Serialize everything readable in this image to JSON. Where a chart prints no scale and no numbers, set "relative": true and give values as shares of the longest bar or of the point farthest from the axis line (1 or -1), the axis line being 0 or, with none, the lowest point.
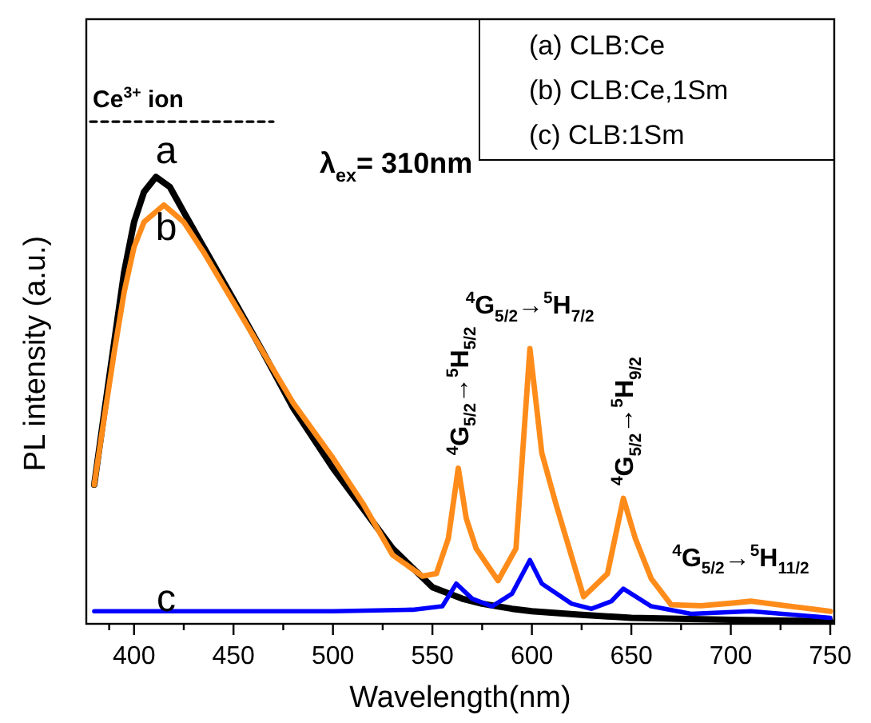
{
  "chart_data": {
    "type": "line",
    "relative": true,
    "xlabel": "Wavelength(nm)",
    "ylabel": "PL intensity (a.u.)",
    "xlim": [
      376,
      752
    ],
    "xticks": [
      {
        "value": 387.5,
        "label": null
      },
      400,
      {
        "value": 425,
        "label": null
      },
      450,
      {
        "value": 475,
        "label": null
      },
      500,
      {
        "value": 525,
        "label": null
      },
      550,
      {
        "value": 575,
        "label": null
      },
      600,
      {
        "value": 625,
        "label": null
      },
      650,
      {
        "value": 675,
        "label": null
      },
      700,
      {
        "value": 725,
        "label": null
      },
      750
    ],
    "grid": false,
    "marker": "none",
    "series": [
      {
        "color": "#000000",
        "x": [
          380,
          385,
          390,
          395,
          400,
          405,
          411,
          418,
          425,
          435,
          450,
          465,
          480,
          500,
          515,
          530,
          550,
          565,
          575,
          590,
          600,
          625,
          650,
          700,
          750
        ],
        "values": [
          0.277,
          0.42,
          0.56,
          0.7,
          0.8,
          0.86,
          0.89,
          0.87,
          0.82,
          0.75,
          0.646,
          0.54,
          0.43,
          0.31,
          0.23,
          0.15,
          0.073,
          0.05,
          0.04,
          0.03,
          0.025,
          0.018,
          0.012,
          0.008,
          0.005
        ]
      },
      {
        "color": "#ff8c1a",
        "x": [
          380,
          385,
          390,
          395,
          400,
          405,
          415,
          425,
          435,
          450,
          465,
          480,
          500,
          515,
          530,
          545,
          552,
          558,
          563,
          567,
          572,
          583,
          592,
          599,
          605,
          612,
          626,
          638,
          646,
          652,
          660,
          670,
          685,
          700,
          710,
          730,
          750
        ],
        "values": [
          0.277,
          0.41,
          0.54,
          0.66,
          0.75,
          0.8,
          0.834,
          0.8,
          0.74,
          0.64,
          0.54,
          0.44,
          0.33,
          0.24,
          0.137,
          0.095,
          0.1,
          0.17,
          0.31,
          0.21,
          0.15,
          0.086,
          0.15,
          0.548,
          0.34,
          0.24,
          0.054,
          0.1,
          0.25,
          0.17,
          0.09,
          0.038,
          0.036,
          0.041,
          0.045,
          0.035,
          0.025
        ]
      },
      {
        "color": "#0000ff",
        "x": [
          380,
          450,
          500,
          540,
          555,
          562,
          570,
          580,
          590,
          599,
          605,
          620,
          630,
          640,
          646,
          660,
          680,
          710,
          750
        ],
        "values": [
          0.025,
          0.025,
          0.025,
          0.028,
          0.035,
          0.08,
          0.05,
          0.035,
          0.06,
          0.127,
          0.08,
          0.04,
          0.03,
          0.045,
          0.07,
          0.035,
          0.02,
          0.025,
          0.012
        ]
      },
      {
        "color": "#000000",
        "line_style": "dashed",
        "x": [
          378,
          470
        ],
        "values": [
          1,
          1
        ]
      }
    ],
    "annotations": [
      "λ$_{ex}$= 310nm",
      "(a) CLB:Ce",
      "(b) CLB:Ce,1Sm",
      "(c) CLB:1Sm",
      "a",
      "b",
      "c",
      "Ce$^{3+}$ ion",
      {
        "text": "$^{4}$G$_{5/2}$→$^{5}$H$_{5/2}$",
        "x": 563,
        "y": 0.31
      },
      {
        "text": "$^{4}$G$_{5/2}$→$^{5}$H$_{7/2}$",
        "x": 599,
        "y": 0.548
      },
      {
        "text": "$^{4}$G$_{5/2}$→$^{5}$H$_{9/2}$",
        "x": 646,
        "y": 0.25
      },
      {
        "text": "$^{4}$G$_{5/2}$→$^{5}$H$_{11/2}$",
        "x": 705,
        "y": 0.045
      }
    ]
  }
}
